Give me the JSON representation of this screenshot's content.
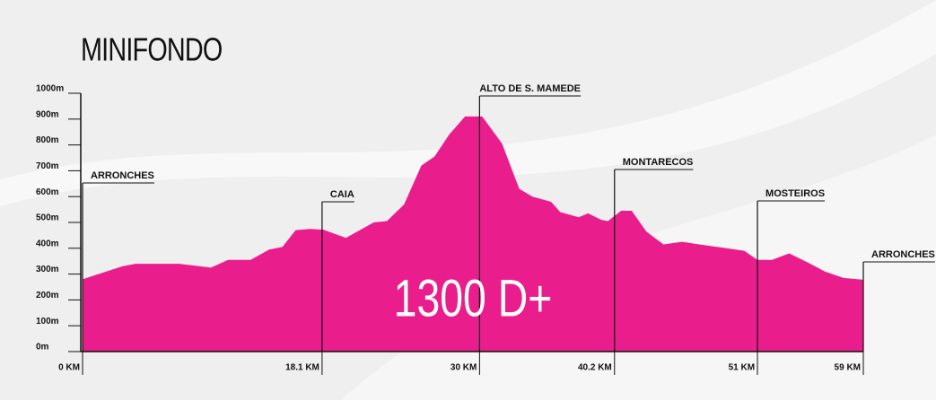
{
  "chart_data": {
    "type": "area",
    "title": "MINIFONDO",
    "annotation": "1300 D+",
    "color": "#e91e8c",
    "x": [
      0,
      3,
      4,
      7.3,
      9.7,
      11,
      12.7,
      14.1,
      15.1,
      16.1,
      17.2,
      18.2,
      19.9,
      22,
      23,
      24.3,
      25.6,
      26.6,
      27.7,
      28.9,
      30.2,
      31.7,
      33,
      34,
      35.4,
      36.1,
      37.5,
      38.2,
      39.2,
      39.7,
      40.7,
      41.5,
      42.6,
      43.9,
      45.3,
      46.6,
      48,
      50,
      51,
      52.1,
      53.4,
      54.8,
      56.1,
      57.5,
      59
    ],
    "values": [
      280,
      330,
      340,
      340,
      325,
      355,
      355,
      395,
      405,
      470,
      475,
      472,
      440,
      500,
      505,
      570,
      720,
      755,
      840,
      910,
      910,
      805,
      630,
      600,
      580,
      540,
      520,
      535,
      510,
      505,
      545,
      545,
      465,
      415,
      425,
      415,
      405,
      390,
      355,
      355,
      380,
      345,
      310,
      285,
      278
    ],
    "xlim": [
      0,
      59
    ],
    "xticks": [
      {
        "value": 0,
        "label": "0 KM"
      },
      {
        "value": 18.1,
        "label": "18.1 KM"
      },
      {
        "value": 30,
        "label": "30 KM"
      },
      {
        "value": 40.2,
        "label": "40.2 KM"
      },
      {
        "value": 51,
        "label": "51 KM"
      },
      {
        "value": 59,
        "label": "59 KM"
      }
    ],
    "waypoints": [
      "ARRONCHES",
      "CAIA",
      "ALTO DE S. MAMEDE",
      "MONTARECOS",
      "MOSTEIROS",
      "ARRONCHES"
    ],
    "ylim": [
      0,
      1000
    ],
    "yticks": [
      {
        "value": 0,
        "label": "0m"
      },
      {
        "value": 100,
        "label": "100m"
      },
      {
        "value": 200,
        "label": "200m"
      },
      {
        "value": 300,
        "label": "300m"
      },
      {
        "value": 400,
        "label": "400m"
      },
      {
        "value": 500,
        "label": "500m"
      },
      {
        "value": 600,
        "label": "600m"
      },
      {
        "value": 700,
        "label": "700m"
      },
      {
        "value": 800,
        "label": "800m"
      },
      {
        "value": 900,
        "label": "900m"
      },
      {
        "value": 1000,
        "label": "1000m"
      }
    ]
  }
}
